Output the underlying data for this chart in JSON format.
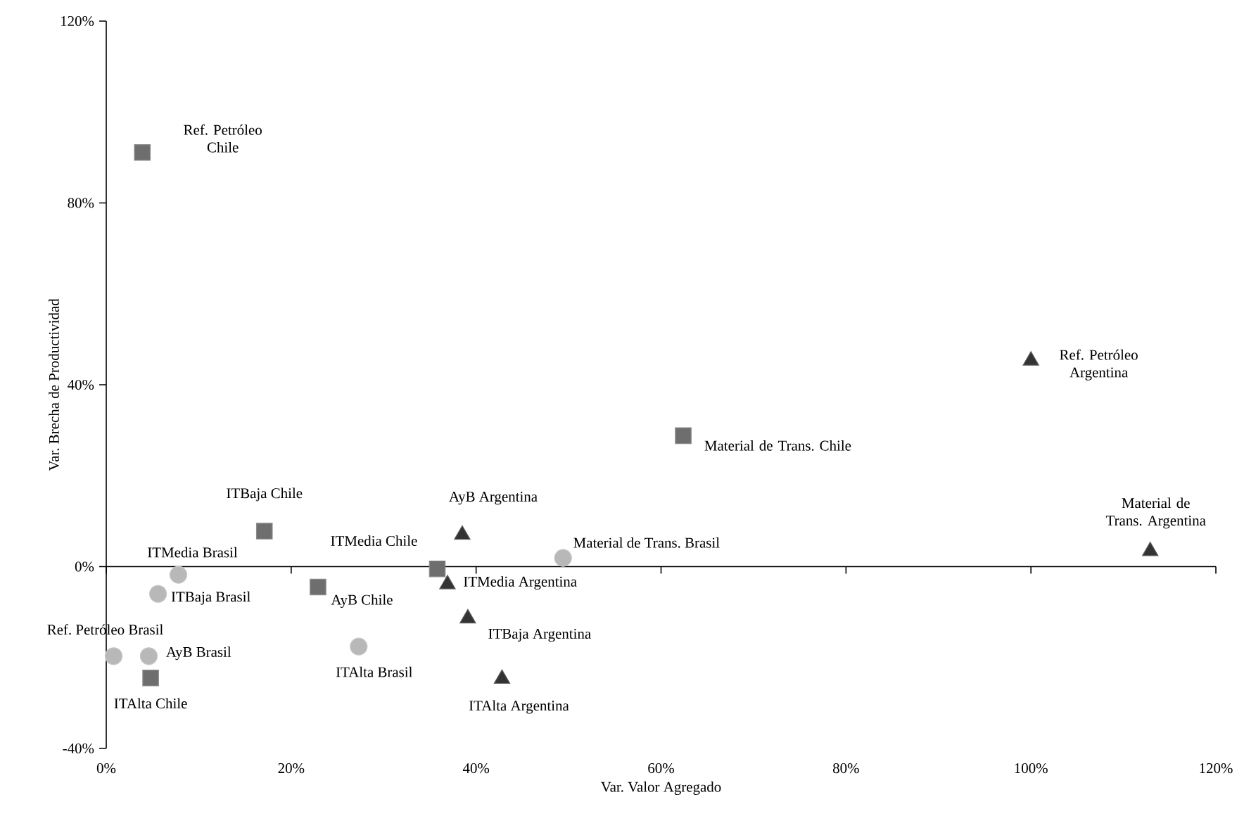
{
  "chart_data": {
    "type": "scatter",
    "xlabel": "Var. Valor Agregado",
    "ylabel": "Var. Brecha de Productividad",
    "xlim": [
      0,
      120
    ],
    "ylim": [
      -40,
      120
    ],
    "xticks": [
      {
        "value": 0,
        "label": "0%"
      },
      {
        "value": 20,
        "label": "20%"
      },
      {
        "value": 40,
        "label": "40%"
      },
      {
        "value": 60,
        "label": "60%"
      },
      {
        "value": 80,
        "label": "80%"
      },
      {
        "value": 100,
        "label": "100%"
      },
      {
        "value": 120,
        "label": "120%"
      }
    ],
    "yticks": [
      {
        "value": -40,
        "label": "-40%"
      },
      {
        "value": 0,
        "label": "0%"
      },
      {
        "value": 40,
        "label": "40%"
      },
      {
        "value": 80,
        "label": "80%"
      },
      {
        "value": 120,
        "label": "120%"
      }
    ],
    "series": [
      {
        "marker": "square",
        "color": "#6e6e6e",
        "x": [
          3.9,
          17.1,
          22.9,
          35.8,
          62.4,
          4.8
        ],
        "values": [
          91.1,
          7.8,
          -4.5,
          -0.5,
          28.8,
          -24.5
        ]
      },
      {
        "marker": "circle",
        "color": "#b8b8b8",
        "x": [
          7.8,
          5.6,
          0.8,
          4.6,
          27.3,
          49.4
        ],
        "values": [
          -1.8,
          -6,
          -19.7,
          -19.7,
          -17.6,
          1.9
        ]
      },
      {
        "marker": "triangle",
        "color": "#333333",
        "x": [
          38.5,
          36.9,
          39.1,
          42.8,
          100,
          112.9
        ],
        "values": [
          7,
          -3.9,
          -11.4,
          -24.7,
          45.3,
          3.4
        ]
      }
    ],
    "annotations": [
      {
        "text": "Ref. Petróleo Chile",
        "x": 3.9,
        "y": 91.1
      },
      {
        "text": "ITBaja Chile",
        "x": 17.1,
        "y": 7.8
      },
      {
        "text": "AyB Chile",
        "x": 22.9,
        "y": -4.5
      },
      {
        "text": "ITMedia Chile",
        "x": 35.8,
        "y": -0.5
      },
      {
        "text": "Material de Trans. Chile",
        "x": 62.4,
        "y": 28.8
      },
      {
        "text": "ITAlta Chile",
        "x": 4.8,
        "y": -24.5
      },
      {
        "text": "ITMedia Brasil",
        "x": 7.8,
        "y": -1.8
      },
      {
        "text": "ITBaja Brasil",
        "x": 5.6,
        "y": -6
      },
      {
        "text": "Ref. Petróleo Brasil",
        "x": 0.8,
        "y": -19.7
      },
      {
        "text": "AyB Brasil",
        "x": 4.6,
        "y": -19.7
      },
      {
        "text": "ITAlta Brasil",
        "x": 27.3,
        "y": -17.6
      },
      {
        "text": "Material de Trans. Brasil",
        "x": 49.4,
        "y": 1.9
      },
      {
        "text": "AyB Argentina",
        "x": 38.5,
        "y": 7
      },
      {
        "text": "ITMedia Argentina",
        "x": 36.9,
        "y": -3.9
      },
      {
        "text": "ITBaja Argentina",
        "x": 39.1,
        "y": -11.4
      },
      {
        "text": "ITAlta Argentina",
        "x": 42.8,
        "y": -24.7
      },
      {
        "text": "Ref. Petróleo Argentina",
        "x": 100,
        "y": 45.3
      },
      {
        "text": "Material de Trans. Argentina",
        "x": 112.9,
        "y": 3.4
      }
    ]
  }
}
